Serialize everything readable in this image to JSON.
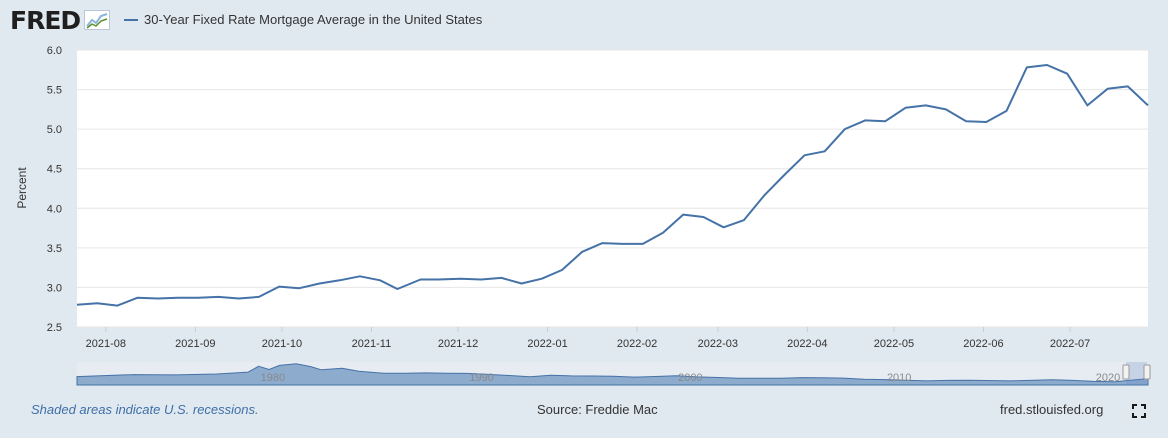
{
  "header": {
    "logo_text": "FRED",
    "legend_label": "30-Year Fixed Rate Mortgage Average in the United States"
  },
  "colors": {
    "line": "#4572a7",
    "navigator_fill": "#6f95c0",
    "background": "#e1e9f0",
    "plot_background": "#ffffff"
  },
  "chart_data": {
    "type": "line",
    "title": "",
    "xlabel": "",
    "ylabel": "Percent",
    "ylim": [
      2.5,
      6.0
    ],
    "yticks": [
      "2.5",
      "3.0",
      "3.5",
      "4.0",
      "4.5",
      "5.0",
      "5.5",
      "6.0"
    ],
    "xlim": [
      "2021-07-22",
      "2022-07-28"
    ],
    "xticks": [
      "2021-08",
      "2021-09",
      "2021-10",
      "2021-11",
      "2021-12",
      "2022-01",
      "2022-02",
      "2022-03",
      "2022-04",
      "2022-05",
      "2022-06",
      "2022-07"
    ],
    "grid": true,
    "legend": "top-left",
    "series": [
      {
        "name": "30-Year Fixed Rate Mortgage Average in the United States",
        "x": [
          "2021-07-22",
          "2021-07-29",
          "2021-08-05",
          "2021-08-12",
          "2021-08-19",
          "2021-08-26",
          "2021-09-02",
          "2021-09-09",
          "2021-09-16",
          "2021-09-23",
          "2021-09-30",
          "2021-10-07",
          "2021-10-14",
          "2021-10-21",
          "2021-10-28",
          "2021-11-04",
          "2021-11-10",
          "2021-11-18",
          "2021-11-24",
          "2021-12-02",
          "2021-12-09",
          "2021-12-16",
          "2021-12-23",
          "2021-12-30",
          "2022-01-06",
          "2022-01-13",
          "2022-01-20",
          "2022-01-27",
          "2022-02-03",
          "2022-02-10",
          "2022-02-17",
          "2022-02-24",
          "2022-03-03",
          "2022-03-10",
          "2022-03-17",
          "2022-03-24",
          "2022-03-31",
          "2022-04-07",
          "2022-04-14",
          "2022-04-21",
          "2022-04-28",
          "2022-05-05",
          "2022-05-12",
          "2022-05-19",
          "2022-05-26",
          "2022-06-02",
          "2022-06-09",
          "2022-06-16",
          "2022-06-23",
          "2022-06-30",
          "2022-07-07",
          "2022-07-14",
          "2022-07-21",
          "2022-07-28"
        ],
        "values": [
          2.78,
          2.8,
          2.77,
          2.87,
          2.86,
          2.87,
          2.87,
          2.88,
          2.86,
          2.88,
          3.01,
          2.99,
          3.05,
          3.09,
          3.14,
          3.09,
          2.98,
          3.1,
          3.1,
          3.11,
          3.1,
          3.12,
          3.05,
          3.11,
          3.22,
          3.45,
          3.56,
          3.55,
          3.55,
          3.69,
          3.92,
          3.89,
          3.76,
          3.85,
          4.16,
          4.42,
          4.67,
          4.72,
          5.0,
          5.11,
          5.1,
          5.27,
          5.3,
          5.25,
          5.1,
          5.09,
          5.23,
          5.78,
          5.81,
          5.7,
          5.3,
          5.51,
          5.54,
          5.3
        ]
      }
    ],
    "navigator": {
      "labels": [
        "1980",
        "1990",
        "2000",
        "2010",
        "2020"
      ],
      "xlim": [
        1971.3,
        2022.6
      ],
      "ylim": [
        0,
        20
      ],
      "years": [
        1971.3,
        1974,
        1976,
        1978,
        1979.5,
        1980,
        1980.5,
        1981,
        1981.8,
        1982.5,
        1983,
        1984,
        1984.8,
        1986,
        1987,
        1988,
        1989,
        1990,
        1991,
        1992,
        1993,
        1994,
        1995,
        1996,
        1997,
        1998,
        1999,
        2000,
        2001,
        2002,
        2003,
        2005,
        2006,
        2007,
        2008,
        2009,
        2010,
        2012,
        2013,
        2014,
        2016,
        2018,
        2019,
        2020,
        2021,
        2022.6
      ],
      "values": [
        7.3,
        9.0,
        8.8,
        9.6,
        11.2,
        16.3,
        13.5,
        17.0,
        18.5,
        16.0,
        13.2,
        14.5,
        12.0,
        10.2,
        10.2,
        10.5,
        10.3,
        10.1,
        9.2,
        8.3,
        7.2,
        8.4,
        7.9,
        7.8,
        7.6,
        6.9,
        7.4,
        8.1,
        7.0,
        6.5,
        5.8,
        5.9,
        6.4,
        6.3,
        6.0,
        5.0,
        4.7,
        3.6,
        4.0,
        4.2,
        3.6,
        4.5,
        4.0,
        3.1,
        2.9,
        5.5
      ]
    }
  },
  "footer": {
    "recession_note": "Shaded areas indicate U.S. recessions.",
    "source": "Source: Freddie Mac",
    "site": "fred.stlouisfed.org"
  },
  "icons": {
    "logo_graph": "line-graph-icon",
    "fullscreen": "fullscreen-icon"
  }
}
